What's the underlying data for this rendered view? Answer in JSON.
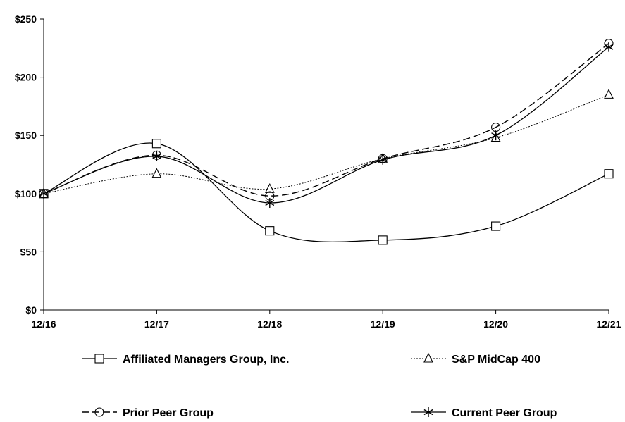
{
  "chart_data": {
    "type": "line",
    "x": [
      "12/16",
      "12/17",
      "12/18",
      "12/19",
      "12/20",
      "12/21"
    ],
    "y_ticks": [
      "$0",
      "$50",
      "$100",
      "$150",
      "$200",
      "$250"
    ],
    "ylim": [
      0,
      250
    ],
    "grid": false,
    "legend_position": "bottom",
    "series": [
      {
        "name": "Affiliated Managers Group, Inc.",
        "values": [
          100,
          143,
          68,
          60,
          72,
          117
        ],
        "marker": "square",
        "dash": "solid"
      },
      {
        "name": "S&P MidCap 400",
        "values": [
          100,
          117,
          104,
          130,
          148,
          185
        ],
        "marker": "triangle",
        "dash": "dotted"
      },
      {
        "name": "Prior Peer Group",
        "values": [
          100,
          133,
          98,
          130,
          157,
          229
        ],
        "marker": "circle",
        "dash": "dashed"
      },
      {
        "name": "Current Peer Group",
        "values": [
          100,
          132,
          92,
          129,
          150,
          226
        ],
        "marker": "asterisk",
        "dash": "solid"
      }
    ]
  }
}
